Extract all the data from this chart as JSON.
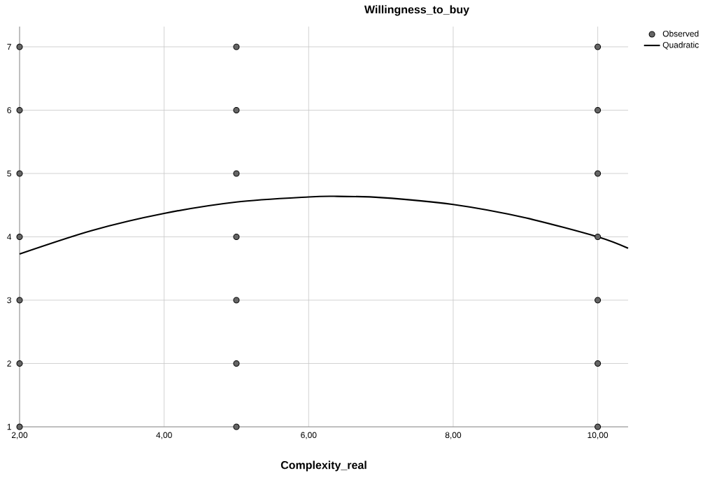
{
  "chart_data": {
    "type": "scatter",
    "title": "Willingness_to_buy",
    "xlabel": "Complexity_real",
    "xlim": [
      2,
      10.42
    ],
    "ylim": [
      1,
      7.32
    ],
    "xticks": [
      {
        "value": 2,
        "label": "2,00"
      },
      {
        "value": 4,
        "label": "4,00"
      },
      {
        "value": 6,
        "label": "6,00"
      },
      {
        "value": 8,
        "label": "8,00"
      },
      {
        "value": 10,
        "label": "10,00"
      }
    ],
    "yticks": [
      1,
      2,
      3,
      4,
      5,
      6,
      7
    ],
    "grid": true,
    "legend": "top right",
    "series": [
      {
        "name": "Observed",
        "marker": "circle",
        "color": "#666666",
        "x": [
          2,
          2,
          2,
          2,
          2,
          2,
          2,
          5,
          5,
          5,
          5,
          5,
          5,
          5,
          10,
          10,
          10,
          10,
          10,
          10,
          10
        ],
        "values": [
          1,
          2,
          3,
          4,
          5,
          6,
          7,
          1,
          2,
          3,
          4,
          5,
          6,
          7,
          1,
          2,
          3,
          4,
          5,
          6,
          7
        ]
      },
      {
        "name": "Quadratic",
        "type": "line",
        "color": "#000000",
        "marker": "none",
        "line_style": "solid",
        "x": [
          2,
          3,
          4,
          5,
          6,
          6.35,
          7,
          8,
          9,
          10,
          10.42
        ],
        "values": [
          3.73,
          4.1,
          4.37,
          4.55,
          4.63,
          4.64,
          4.62,
          4.51,
          4.3,
          4.0,
          3.82
        ]
      }
    ]
  }
}
